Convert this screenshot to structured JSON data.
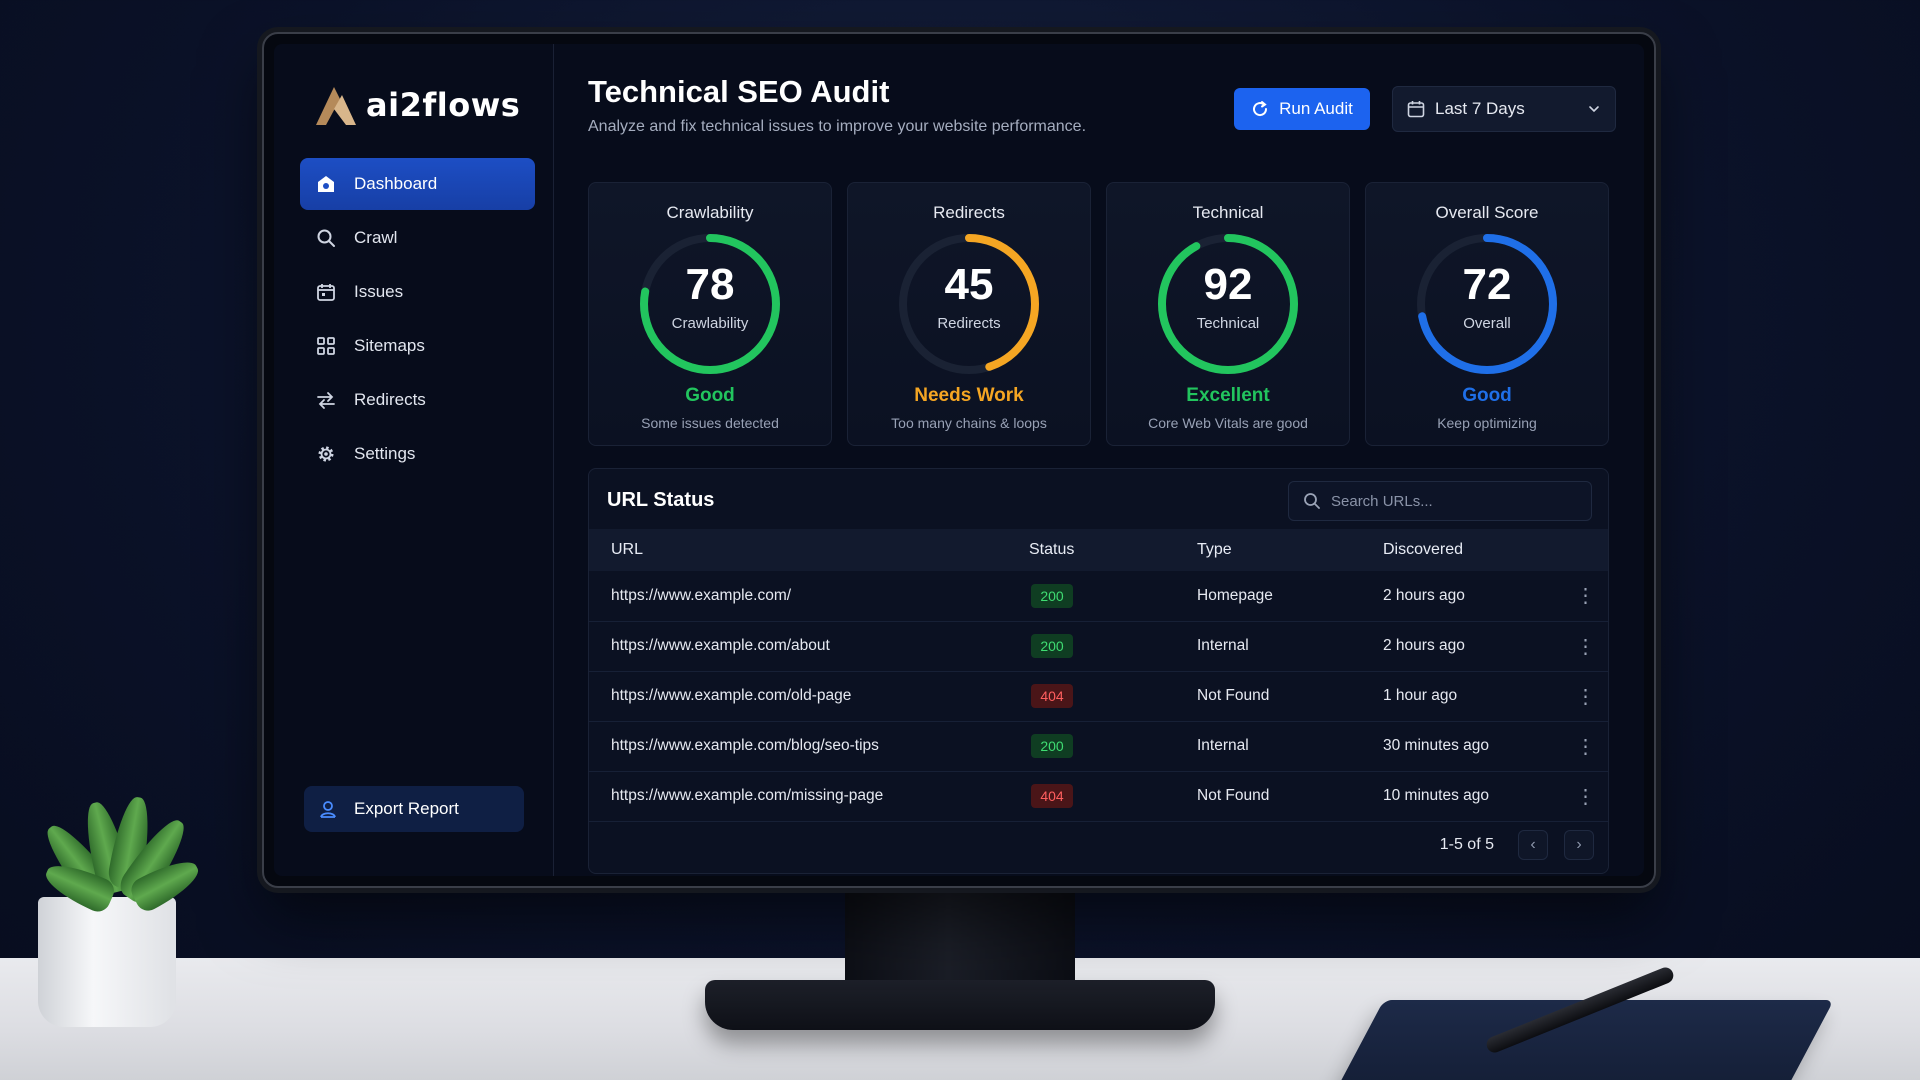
{
  "brand": {
    "name": "ai2flows"
  },
  "sidebar": {
    "items": [
      {
        "label": "Dashboard",
        "icon": "dashboard-icon",
        "active": true
      },
      {
        "label": "Crawl",
        "icon": "search-icon"
      },
      {
        "label": "Issues",
        "icon": "calendar-icon"
      },
      {
        "label": "Sitemaps",
        "icon": "sitemap-icon"
      },
      {
        "label": "Redirects",
        "icon": "redirect-arrows-icon"
      },
      {
        "label": "Settings",
        "icon": "gear-icon"
      }
    ],
    "export_label": "Export Report"
  },
  "header": {
    "title": "Technical SEO Audit",
    "subtitle": "Analyze and fix technical issues to improve your website performance.",
    "run_label": "Run Audit",
    "date_range": "Last 7 Days"
  },
  "cards": [
    {
      "title": "Crawlability",
      "value": "78",
      "label": "Crawlability",
      "status": "Good",
      "note": "Some issues detected",
      "color": "#22c55e",
      "fraction": 0.78
    },
    {
      "title": "Redirects",
      "value": "45",
      "label": "Redirects",
      "status": "Needs Work",
      "note": "Too many chains & loops",
      "color": "#f5a623",
      "fraction": 0.45
    },
    {
      "title": "Technical",
      "value": "92",
      "label": "Technical",
      "status": "Excellent",
      "note": "Core Web Vitals are good",
      "color": "#22c55e",
      "fraction": 0.92
    },
    {
      "title": "Overall Score",
      "value": "72",
      "label": "Overall",
      "status": "Good",
      "note": "Keep optimizing",
      "color": "#1f6fe8",
      "fraction": 0.72
    }
  ],
  "url_status": {
    "title": "URL Status",
    "search_placeholder": "Search URLs...",
    "columns": [
      "URL",
      "Status",
      "Type",
      "Discovered"
    ],
    "rows": [
      {
        "url": "https://www.example.com/",
        "status": "200",
        "type": "Homepage",
        "discovered": "2 hours ago"
      },
      {
        "url": "https://www.example.com/about",
        "status": "200",
        "type": "Internal",
        "discovered": "2 hours ago"
      },
      {
        "url": "https://www.example.com/old-page",
        "status": "404",
        "type": "Not Found",
        "discovered": "1 hour ago"
      },
      {
        "url": "https://www.example.com/blog/seo-tips",
        "status": "200",
        "type": "Internal",
        "discovered": "30 minutes ago"
      },
      {
        "url": "https://www.example.com/missing-page",
        "status": "404",
        "type": "Not Found",
        "discovered": "10 minutes ago"
      }
    ],
    "pagination": "1-5 of 5"
  },
  "colors": {
    "accent": "#1c63ef",
    "good": "#22c55e",
    "warning": "#f5a623",
    "overall": "#1f6fe8",
    "error": "#ff5f5f"
  }
}
